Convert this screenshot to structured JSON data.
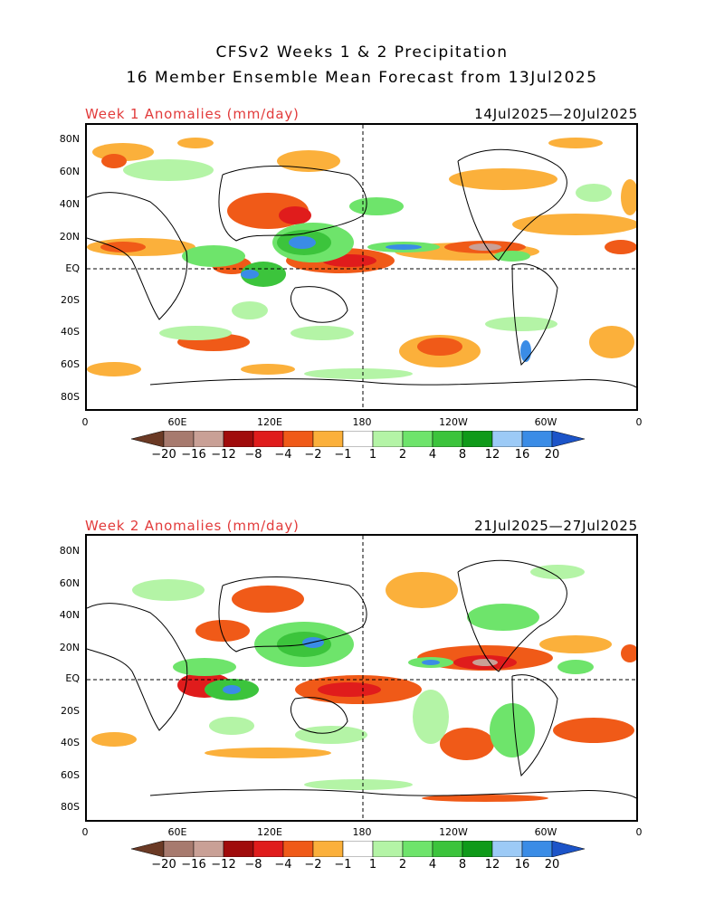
{
  "title_line1": "CFSv2 Weeks 1 & 2 Precipitation",
  "title_line2": "16 Member Ensemble Mean Forecast from 13Jul2025",
  "panels": [
    {
      "label": "Week 1 Anomalies (mm/day)",
      "dates": "14Jul2025—20Jul2025"
    },
    {
      "label": "Week 2 Anomalies (mm/day)",
      "dates": "21Jul2025—27Jul2025"
    }
  ],
  "lat_labels": [
    "80N",
    "60N",
    "40N",
    "20N",
    "EQ",
    "20S",
    "40S",
    "60S",
    "80S"
  ],
  "lon_labels": [
    "0",
    "60E",
    "120E",
    "180",
    "120W",
    "60W",
    "0"
  ],
  "colorbar": {
    "labels": [
      "−20",
      "−16",
      "−12",
      "−8",
      "−4",
      "−2",
      "−1",
      "1",
      "2",
      "4",
      "8",
      "12",
      "16",
      "20"
    ],
    "colors": [
      "#6b3a25",
      "#a77a6e",
      "#c9a096",
      "#a00c0c",
      "#e01c1c",
      "#f05a18",
      "#fbb03b",
      "#ffffff",
      "#b4f4a6",
      "#6ee46b",
      "#3cc43c",
      "#0f9a19",
      "#9ccaf6",
      "#3a8ce6",
      "#1c54c8"
    ]
  }
}
